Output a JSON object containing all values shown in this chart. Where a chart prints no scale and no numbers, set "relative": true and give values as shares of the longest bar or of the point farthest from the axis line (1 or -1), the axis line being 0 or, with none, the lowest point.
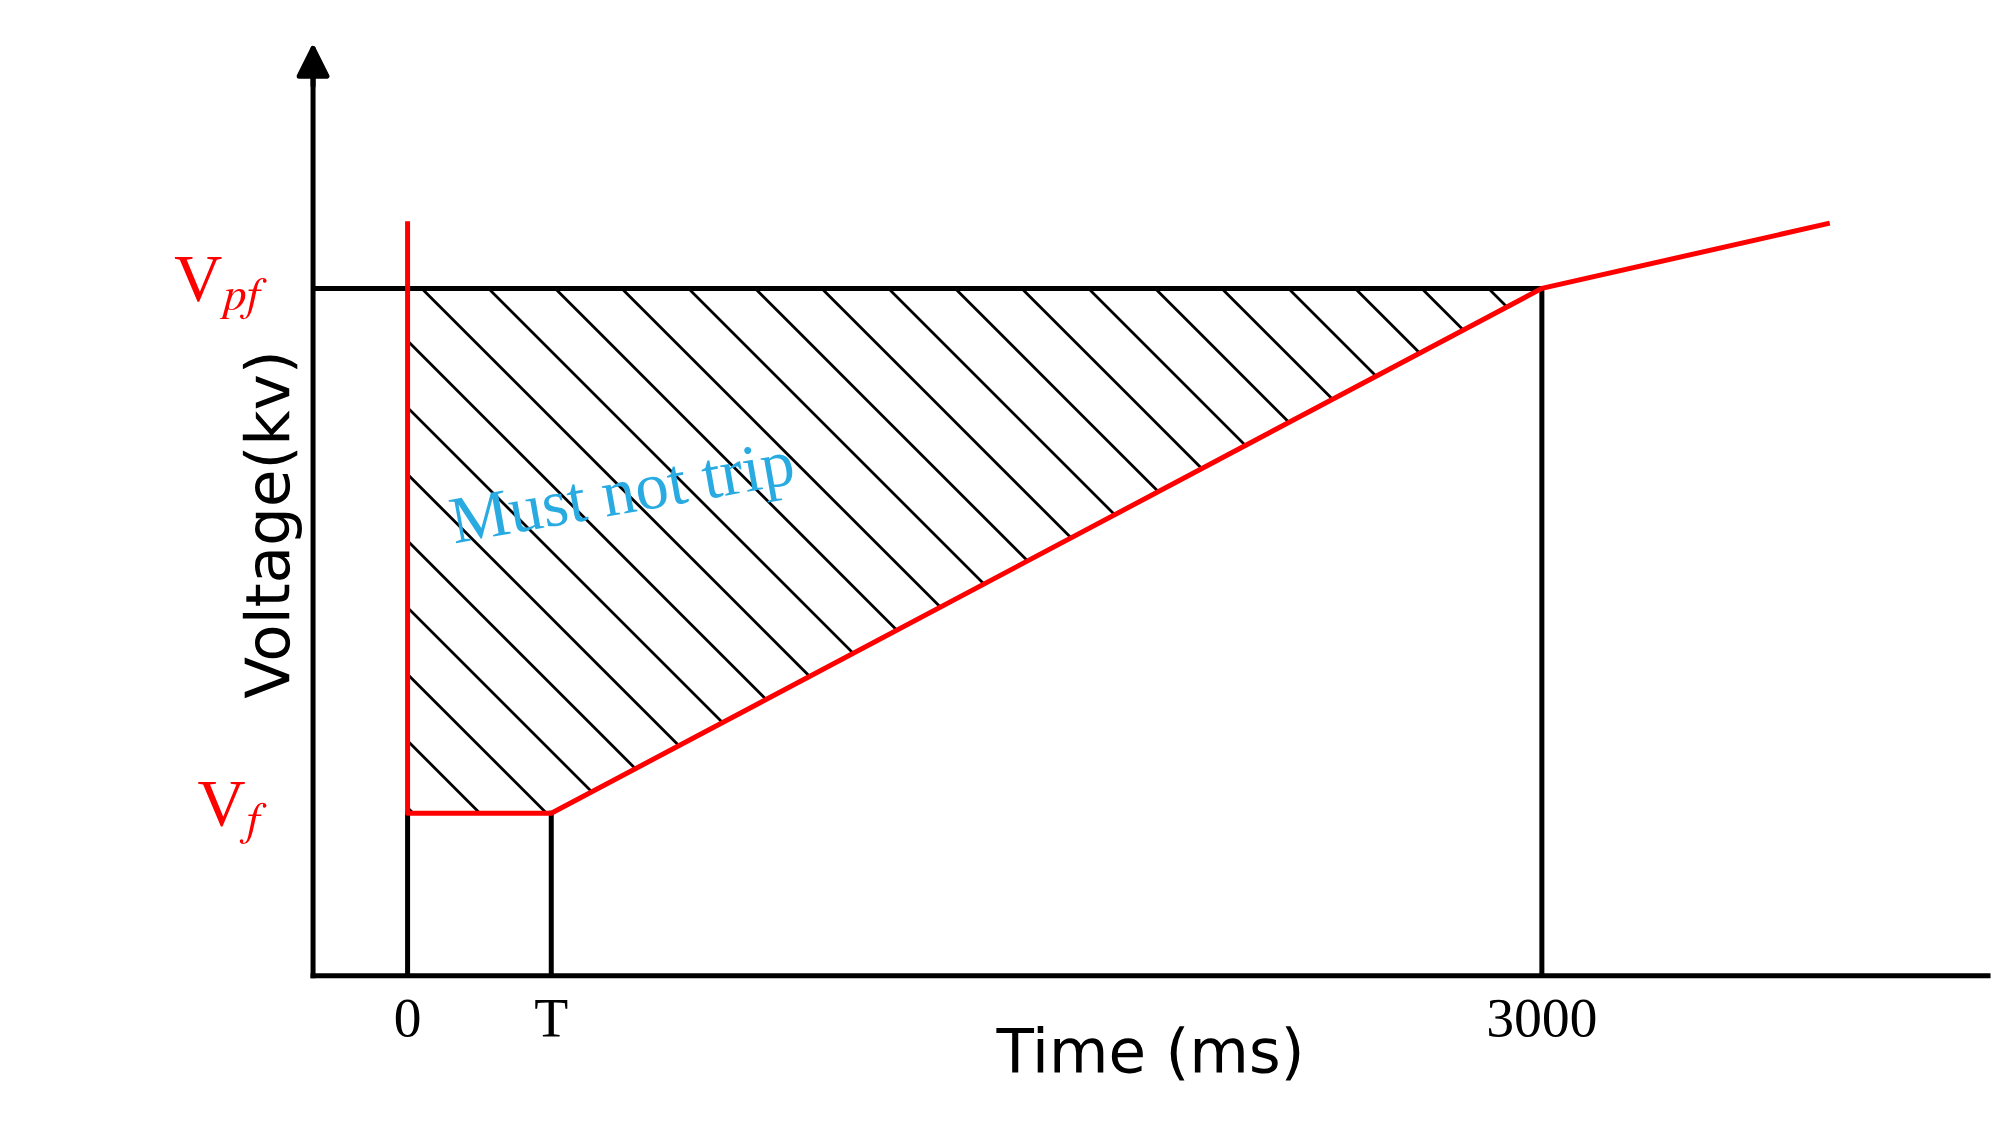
{
  "chart_data": {
    "type": "line",
    "relative": true,
    "xlabel": "Time (ms)",
    "ylabel": "Voltage(kv)",
    "xlim": [
      -250,
      4180
    ],
    "xticks": [
      0,
      {
        "value": 380,
        "label": "T"
      },
      3000
    ],
    "grid": false,
    "legend": false,
    "marker": "none",
    "line_style": "solid",
    "series": [
      {
        "color": "#000000",
        "x": [
          -250,
          3000,
          3000
        ],
        "values": [
          0.914,
          0.914,
          0
        ]
      },
      {
        "color": "#000000",
        "x": [
          0,
          0
        ],
        "values": [
          0,
          0.216
        ]
      },
      {
        "color": "#000000",
        "x": [
          380,
          380
        ],
        "values": [
          0,
          0.216
        ]
      },
      {
        "color": "#ff0000",
        "x": [
          0,
          0,
          380,
          3000,
          3755
        ],
        "values": [
          1,
          0.216,
          0.216,
          0.914,
          1
        ]
      }
    ],
    "annotations": [
      "V$_{pf}$",
      "V$_{f}$",
      "Must not trip"
    ]
  }
}
